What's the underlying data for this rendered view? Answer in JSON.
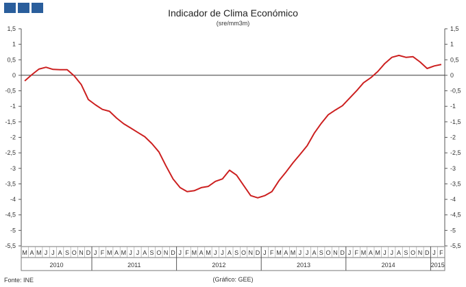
{
  "logo": {
    "icon": "ine-logo-squares"
  },
  "header": {
    "title": "Indicador de Clima Económico",
    "subtitle": "(sre/mm3m)"
  },
  "footer": {
    "source": "Fonte: INE",
    "credit": "(Gráfico: GEE)"
  },
  "chart_data": {
    "type": "line",
    "title": "Indicador de Clima Económico",
    "subtitle": "(sre/mm3m)",
    "ylim": [
      -5.5,
      1.5
    ],
    "yticks": [
      "1,5",
      "1",
      "0,5",
      "0",
      "-0,5",
      "-1",
      "-1,5",
      "-2",
      "-2,5",
      "-3",
      "-3,5",
      "-4",
      "-4,5",
      "-5",
      "-5,5"
    ],
    "month_labels": [
      "M",
      "A",
      "M",
      "J",
      "J",
      "A",
      "S",
      "O",
      "N",
      "D",
      "J",
      "F",
      "M",
      "A",
      "M",
      "J",
      "J",
      "A",
      "S",
      "O",
      "N",
      "D",
      "J",
      "F",
      "M",
      "A",
      "M",
      "J",
      "J",
      "A",
      "S",
      "O",
      "N",
      "D",
      "J",
      "F",
      "M",
      "A",
      "M",
      "J",
      "J",
      "A",
      "S",
      "O",
      "N",
      "D",
      "J",
      "F",
      "M",
      "A",
      "M",
      "J",
      "J",
      "A",
      "S",
      "O",
      "N",
      "D",
      "J",
      "F"
    ],
    "year_labels": [
      "2010",
      "2011",
      "2012",
      "2013",
      "2014",
      "2015"
    ],
    "grid": false,
    "line_color": "#cc1f1f",
    "series": [
      {
        "values": [
          -0.18,
          0.02,
          0.2,
          0.26,
          0.19,
          0.18,
          0.18,
          -0.02,
          -0.3,
          -0.78,
          -0.95,
          -1.1,
          -1.16,
          -1.38,
          -1.56,
          -1.7,
          -1.84,
          -1.98,
          -2.2,
          -2.47,
          -2.92,
          -3.34,
          -3.62,
          -3.75,
          -3.72,
          -3.62,
          -3.58,
          -3.42,
          -3.34,
          -3.06,
          -3.22,
          -3.55,
          -3.88,
          -3.95,
          -3.88,
          -3.75,
          -3.4,
          -3.12,
          -2.82,
          -2.55,
          -2.27,
          -1.87,
          -1.55,
          -1.27,
          -1.12,
          -0.98,
          -0.74,
          -0.5,
          -0.24,
          -0.08,
          0.12,
          0.38,
          0.58,
          0.64,
          0.58,
          0.6,
          0.43,
          0.22,
          0.3,
          0.35
        ]
      }
    ]
  }
}
